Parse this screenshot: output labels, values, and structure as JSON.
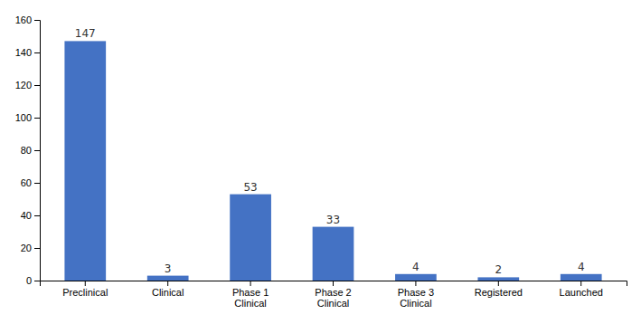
{
  "chart_data": {
    "type": "bar",
    "categories": [
      "Preclinical",
      "Clinical",
      "Phase 1\nClinical",
      "Phase 2\nClinical",
      "Phase 3\nClinical",
      "Registered",
      "Launched"
    ],
    "values": [
      147,
      3,
      53,
      33,
      4,
      2,
      4
    ],
    "color": "#4472C4",
    "ylim": [
      0,
      160
    ],
    "yticks": [
      0,
      20,
      40,
      60,
      80,
      100,
      120,
      140,
      160
    ],
    "grid": false,
    "data_labels": true
  }
}
